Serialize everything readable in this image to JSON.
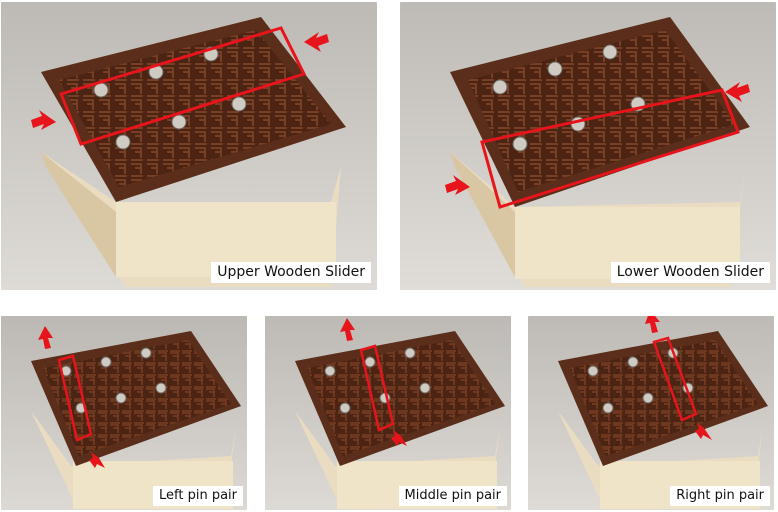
{
  "panels": [
    {
      "id": "upper-wooden-slider",
      "caption": "Upper Wooden Slider",
      "highlight": "upper-row"
    },
    {
      "id": "lower-wooden-slider",
      "caption": "Lower Wooden Slider",
      "highlight": "lower-row"
    },
    {
      "id": "left-pin-pair",
      "caption": "Left pin pair",
      "highlight": "left-column"
    },
    {
      "id": "middle-pin-pair",
      "caption": "Middle pin pair",
      "highlight": "middle-column"
    },
    {
      "id": "right-pin-pair",
      "caption": "Right pin pair",
      "highlight": "right-column"
    }
  ],
  "colors": {
    "highlight_red": "#e8141b",
    "wood_dark": "#5a2e1a",
    "wood_light": "#e8d3ad",
    "pin_metal": "#cfcbc2"
  }
}
